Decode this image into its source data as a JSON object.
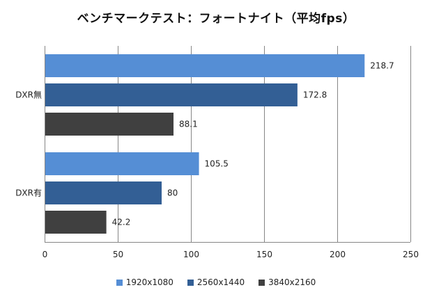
{
  "chart_data": {
    "type": "bar",
    "orientation": "horizontal",
    "title": "ベンチマークテスト：フォートナイト（平均fps）",
    "categories": [
      "DXR無",
      "DXR有"
    ],
    "series": [
      {
        "name": "1920x1080",
        "values": [
          218.7,
          105.5
        ],
        "labels": [
          "218.7",
          "105.5"
        ],
        "color": "#558ED5"
      },
      {
        "name": "2560x1440",
        "values": [
          172.8,
          80
        ],
        "labels": [
          "172.8",
          "80"
        ],
        "color": "#335F95"
      },
      {
        "name": "3840x2160",
        "values": [
          88.1,
          42.2
        ],
        "labels": [
          "88.1",
          "42.2"
        ],
        "color": "#404040"
      }
    ],
    "xlim": [
      0,
      250
    ],
    "xticks": [
      "0",
      "50",
      "100",
      "150",
      "200",
      "250"
    ],
    "grid": true,
    "legend": "bottom-center",
    "xlabel": "",
    "ylabel": ""
  }
}
